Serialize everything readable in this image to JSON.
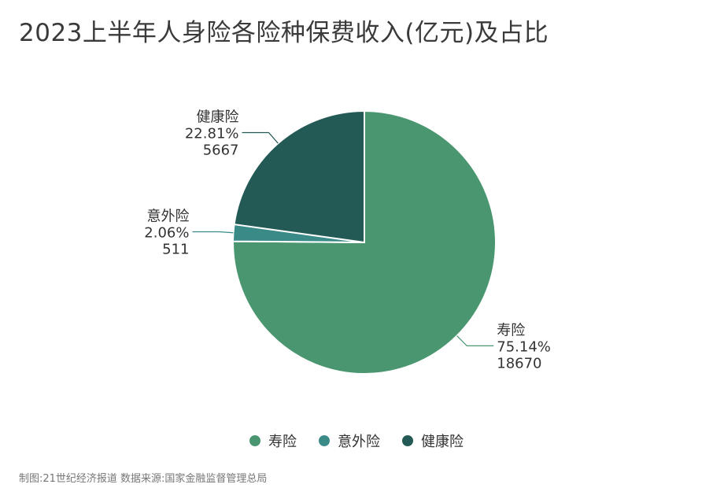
{
  "title": "2023上半年人身险各险种保费收入(亿元)及占比",
  "source": "制图:21世纪经济报道 数据来源:国家金融监督管理总局",
  "chart_data": {
    "type": "pie",
    "title": "2023上半年人身险各险种保费收入(亿元)及占比",
    "categories": [
      "寿险",
      "意外险",
      "健康险"
    ],
    "values": [
      18670,
      511,
      5667
    ],
    "percent_labels": [
      "75.14%",
      "2.06%",
      "22.81%"
    ],
    "value_labels": [
      "18670",
      "511",
      "5667"
    ],
    "colors": [
      "#4a9670",
      "#3a8a88",
      "#245a55"
    ],
    "start_angle": "12 o'clock",
    "direction": "clockwise",
    "legend_position": "bottom"
  }
}
